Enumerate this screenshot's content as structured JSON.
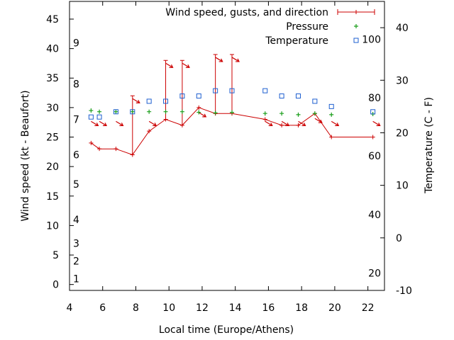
{
  "chart_data": {
    "type": "line",
    "xlabel": "Local time (Europe/Athens)",
    "ylabel_left": "Wind speed (kt - Beaufort)",
    "ylabel_right": "Temperature (C - F)",
    "xlim": [
      4,
      23
    ],
    "ylim_left": [
      -1,
      48
    ],
    "ylim_right": [
      -10,
      45
    ],
    "x_ticks": [
      4,
      6,
      8,
      10,
      12,
      14,
      16,
      18,
      20,
      22
    ],
    "y_ticks_left": [
      0,
      5,
      10,
      15,
      20,
      25,
      30,
      35,
      40,
      45
    ],
    "y_ticks_right": [
      -10,
      0,
      10,
      20,
      30,
      40
    ],
    "beaufort_labels": [
      {
        "label": "1",
        "kt": 1
      },
      {
        "label": "2",
        "kt": 4
      },
      {
        "label": "3",
        "kt": 7
      },
      {
        "label": "4",
        "kt": 11
      },
      {
        "label": "5",
        "kt": 17
      },
      {
        "label": "6",
        "kt": 22
      },
      {
        "label": "7",
        "kt": 28
      },
      {
        "label": "8",
        "kt": 34
      },
      {
        "label": "9",
        "kt": 41
      }
    ],
    "fahrenheit_labels": [
      {
        "label": "20",
        "c": -6.7
      },
      {
        "label": "40",
        "c": 4.4
      },
      {
        "label": "60",
        "c": 15.6
      },
      {
        "label": "80",
        "c": 26.7
      },
      {
        "label": "100",
        "c": 37.8
      }
    ],
    "legend": [
      {
        "label": "Wind speed, gusts, and direction",
        "color": "#cc0000"
      },
      {
        "label": "Pressure",
        "color": "#1a9e1a"
      },
      {
        "label": "Temperature",
        "color": "#1e5fd0"
      }
    ],
    "series": [
      {
        "name": "Wind speed, gusts, and direction",
        "color": "#cc0000",
        "points": [
          {
            "x": 5.3,
            "speed": 24,
            "gust": null,
            "dir": 315
          },
          {
            "x": 5.8,
            "speed": 23,
            "gust": null,
            "dir": 315
          },
          {
            "x": 6.8,
            "speed": 23,
            "gust": null,
            "dir": 315
          },
          {
            "x": 7.8,
            "speed": 22,
            "gust": 32,
            "dir": 315
          },
          {
            "x": 8.8,
            "speed": 26,
            "gust": null,
            "dir": 315
          },
          {
            "x": 9.8,
            "speed": 28,
            "gust": 38,
            "dir": 315
          },
          {
            "x": 10.8,
            "speed": 27,
            "gust": 38,
            "dir": 315
          },
          {
            "x": 11.8,
            "speed": 30,
            "gust": null,
            "dir": 315
          },
          {
            "x": 12.8,
            "speed": 29,
            "gust": 39,
            "dir": 315
          },
          {
            "x": 13.8,
            "speed": 29,
            "gust": 39,
            "dir": 315
          },
          {
            "x": 15.8,
            "speed": 28,
            "gust": null,
            "dir": 315
          },
          {
            "x": 16.8,
            "speed": 27,
            "gust": null,
            "dir": 315
          },
          {
            "x": 17.8,
            "speed": 27,
            "gust": null,
            "dir": 315
          },
          {
            "x": 18.8,
            "speed": 29,
            "gust": null,
            "dir": 315
          },
          {
            "x": 19.8,
            "speed": 25,
            "gust": null,
            "dir": 315
          },
          {
            "x": 22.3,
            "speed": 25,
            "gust": null,
            "dir": 315
          }
        ]
      },
      {
        "name": "Pressure",
        "color": "#1a9e1a",
        "points": [
          {
            "x": 5.3,
            "y": 29.5
          },
          {
            "x": 5.8,
            "y": 29.3
          },
          {
            "x": 6.8,
            "y": 29.3
          },
          {
            "x": 7.8,
            "y": 29.3
          },
          {
            "x": 8.8,
            "y": 29.3
          },
          {
            "x": 9.8,
            "y": 29.3
          },
          {
            "x": 10.8,
            "y": 29.3
          },
          {
            "x": 11.8,
            "y": 29.2
          },
          {
            "x": 12.8,
            "y": 29.1
          },
          {
            "x": 13.8,
            "y": 29.2
          },
          {
            "x": 15.8,
            "y": 29.0
          },
          {
            "x": 16.8,
            "y": 29.0
          },
          {
            "x": 17.8,
            "y": 28.8
          },
          {
            "x": 18.8,
            "y": 29.0
          },
          {
            "x": 19.8,
            "y": 28.8
          },
          {
            "x": 22.3,
            "y": 28.9
          }
        ]
      },
      {
        "name": "Temperature",
        "color": "#1e5fd0",
        "points": [
          {
            "x": 5.3,
            "c": 23
          },
          {
            "x": 5.8,
            "c": 23
          },
          {
            "x": 6.8,
            "c": 24
          },
          {
            "x": 7.8,
            "c": 24
          },
          {
            "x": 8.8,
            "c": 26
          },
          {
            "x": 9.8,
            "c": 26
          },
          {
            "x": 10.8,
            "c": 27
          },
          {
            "x": 11.8,
            "c": 27
          },
          {
            "x": 12.8,
            "c": 28
          },
          {
            "x": 13.8,
            "c": 28
          },
          {
            "x": 15.8,
            "c": 28
          },
          {
            "x": 16.8,
            "c": 27
          },
          {
            "x": 17.8,
            "c": 27
          },
          {
            "x": 18.8,
            "c": 26
          },
          {
            "x": 19.8,
            "c": 25
          },
          {
            "x": 22.3,
            "c": 24
          }
        ]
      }
    ]
  }
}
